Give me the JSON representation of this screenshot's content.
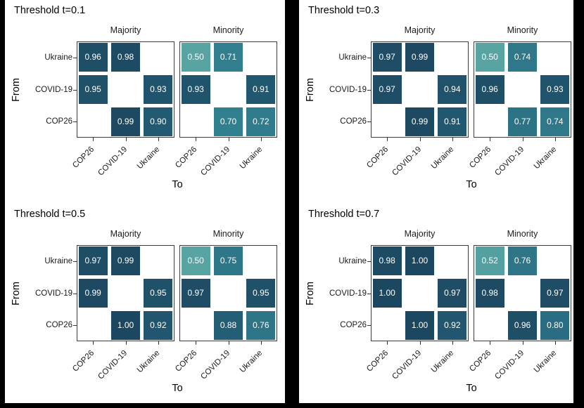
{
  "figure": {
    "row_axis_title": "From",
    "col_axis_title": "To",
    "row_categories": [
      "Ukraine",
      "COVID-19",
      "COP26"
    ],
    "col_categories": [
      "COP26",
      "COVID-19",
      "Ukraine"
    ],
    "facet_labels": [
      "Majority",
      "Minority"
    ],
    "background_color": "#ffffff",
    "frame_color": "#000000",
    "panel_border_color": "#3c3c3c",
    "value_text_color": "#ffffff",
    "color_scale": {
      "anchors": [
        {
          "value": 0.5,
          "color": "#58a4a3"
        },
        {
          "value": 0.7,
          "color": "#31808f"
        },
        {
          "value": 0.8,
          "color": "#2a6d82"
        },
        {
          "value": 0.9,
          "color": "#225a72"
        },
        {
          "value": 1.0,
          "color": "#1c4760"
        }
      ]
    }
  },
  "chart_data": [
    {
      "type": "heatmap",
      "title": "Threshold t=0.1",
      "xlabel": "To",
      "ylabel": "From",
      "x_categories": [
        "COP26",
        "COVID-19",
        "Ukraine"
      ],
      "y_categories": [
        "Ukraine",
        "COVID-19",
        "COP26"
      ],
      "facets": [
        {
          "name": "Majority",
          "matrix": [
            [
              0.96,
              0.98,
              null
            ],
            [
              0.95,
              null,
              0.93
            ],
            [
              null,
              0.99,
              0.9
            ]
          ]
        },
        {
          "name": "Minority",
          "matrix": [
            [
              0.5,
              0.71,
              null
            ],
            [
              0.93,
              null,
              0.91
            ],
            [
              null,
              0.7,
              0.72
            ]
          ]
        }
      ]
    },
    {
      "type": "heatmap",
      "title": "Threshold t=0.3",
      "xlabel": "To",
      "ylabel": "From",
      "x_categories": [
        "COP26",
        "COVID-19",
        "Ukraine"
      ],
      "y_categories": [
        "Ukraine",
        "COVID-19",
        "COP26"
      ],
      "facets": [
        {
          "name": "Majority",
          "matrix": [
            [
              0.97,
              0.99,
              null
            ],
            [
              0.97,
              null,
              0.94
            ],
            [
              null,
              0.99,
              0.91
            ]
          ]
        },
        {
          "name": "Minority",
          "matrix": [
            [
              0.5,
              0.74,
              null
            ],
            [
              0.96,
              null,
              0.93
            ],
            [
              null,
              0.77,
              0.74
            ]
          ]
        }
      ]
    },
    {
      "type": "heatmap",
      "title": "Threshold t=0.5",
      "xlabel": "To",
      "ylabel": "From",
      "x_categories": [
        "COP26",
        "COVID-19",
        "Ukraine"
      ],
      "y_categories": [
        "Ukraine",
        "COVID-19",
        "COP26"
      ],
      "facets": [
        {
          "name": "Majority",
          "matrix": [
            [
              0.97,
              0.99,
              null
            ],
            [
              0.99,
              null,
              0.95
            ],
            [
              null,
              1.0,
              0.92
            ]
          ]
        },
        {
          "name": "Minority",
          "matrix": [
            [
              0.5,
              0.75,
              null
            ],
            [
              0.97,
              null,
              0.95
            ],
            [
              null,
              0.88,
              0.76
            ]
          ]
        }
      ]
    },
    {
      "type": "heatmap",
      "title": "Threshold t=0.7",
      "xlabel": "To",
      "ylabel": "From",
      "x_categories": [
        "COP26",
        "COVID-19",
        "Ukraine"
      ],
      "y_categories": [
        "Ukraine",
        "COVID-19",
        "COP26"
      ],
      "facets": [
        {
          "name": "Majority",
          "matrix": [
            [
              0.98,
              1.0,
              null
            ],
            [
              1.0,
              null,
              0.97
            ],
            [
              null,
              1.0,
              0.92
            ]
          ]
        },
        {
          "name": "Minority",
          "matrix": [
            [
              0.52,
              0.76,
              null
            ],
            [
              0.98,
              null,
              0.97
            ],
            [
              null,
              0.96,
              0.8
            ]
          ]
        }
      ]
    }
  ]
}
